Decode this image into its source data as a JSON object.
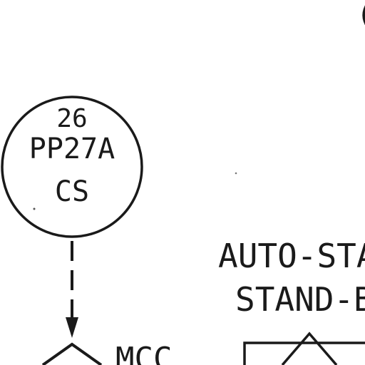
{
  "instrument": {
    "tag_number": "26",
    "tag_id": "PP27A",
    "function": "CS"
  },
  "control_labels": {
    "line1": "AUTO-STA",
    "line2": "STAND-B",
    "corner_char": "("
  },
  "device": {
    "label": "MCC"
  },
  "colors": {
    "ink": "#1a1a1a",
    "background": "#ffffff"
  }
}
